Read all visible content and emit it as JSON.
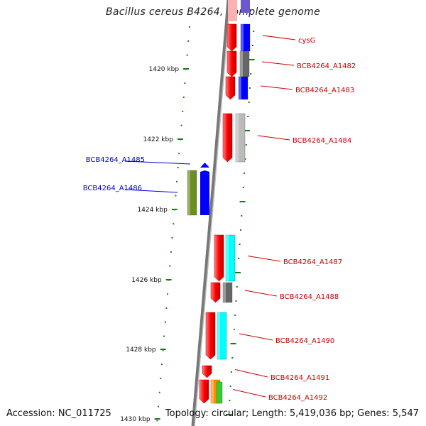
{
  "title": "Bacillus cereus B4264, complete genome",
  "footer": {
    "accession": "Accession: NC_011725",
    "topology": "Topology: circular; Length: 5,419,036 bp; Genes: 5,547"
  },
  "colors": {
    "forward_label": "#0000cc",
    "reverse_label": "#cc0000",
    "tick": "#1a7a1a",
    "backbone": "#808080"
  },
  "kbp_ticks": [
    {
      "label": "1420 kbp",
      "value": 1420
    },
    {
      "label": "1422 kbp",
      "value": 1422
    },
    {
      "label": "1424 kbp",
      "value": 1424
    },
    {
      "label": "1426 kbp",
      "value": 1426
    },
    {
      "label": "1428 kbp",
      "value": 1428
    },
    {
      "label": "1430 kbp",
      "value": 1430
    }
  ],
  "genes": [
    {
      "name": "cysG",
      "strand": "reverse",
      "outer_color": "#0000ff"
    },
    {
      "name": "BCB4264_A1482",
      "strand": "reverse",
      "outer_color": "#666666"
    },
    {
      "name": "BCB4264_A1483",
      "strand": "reverse",
      "outer_color": "#0000ff"
    },
    {
      "name": "BCB4264_A1484",
      "strand": "reverse",
      "outer_color": "#bbbbbb"
    },
    {
      "name": "BCB4264_A1485",
      "strand": "forward",
      "outer_color": "#0000ff"
    },
    {
      "name": "BCB4264_A1486",
      "strand": "forward",
      "outer_color": "#6b8e23"
    },
    {
      "name": "BCB4264_A1487",
      "strand": "reverse",
      "outer_color": "#00ffff"
    },
    {
      "name": "BCB4264_A1488",
      "strand": "reverse",
      "outer_color": "#666666"
    },
    {
      "name": "BCB4264_A1490",
      "strand": "reverse",
      "outer_color": "#00ffff"
    },
    {
      "name": "BCB4264_A1491",
      "strand": "reverse",
      "outer_color": "#ff0000"
    },
    {
      "name": "BCB4264_A1492",
      "strand": "reverse",
      "outer_color": "#ff8c00"
    }
  ]
}
